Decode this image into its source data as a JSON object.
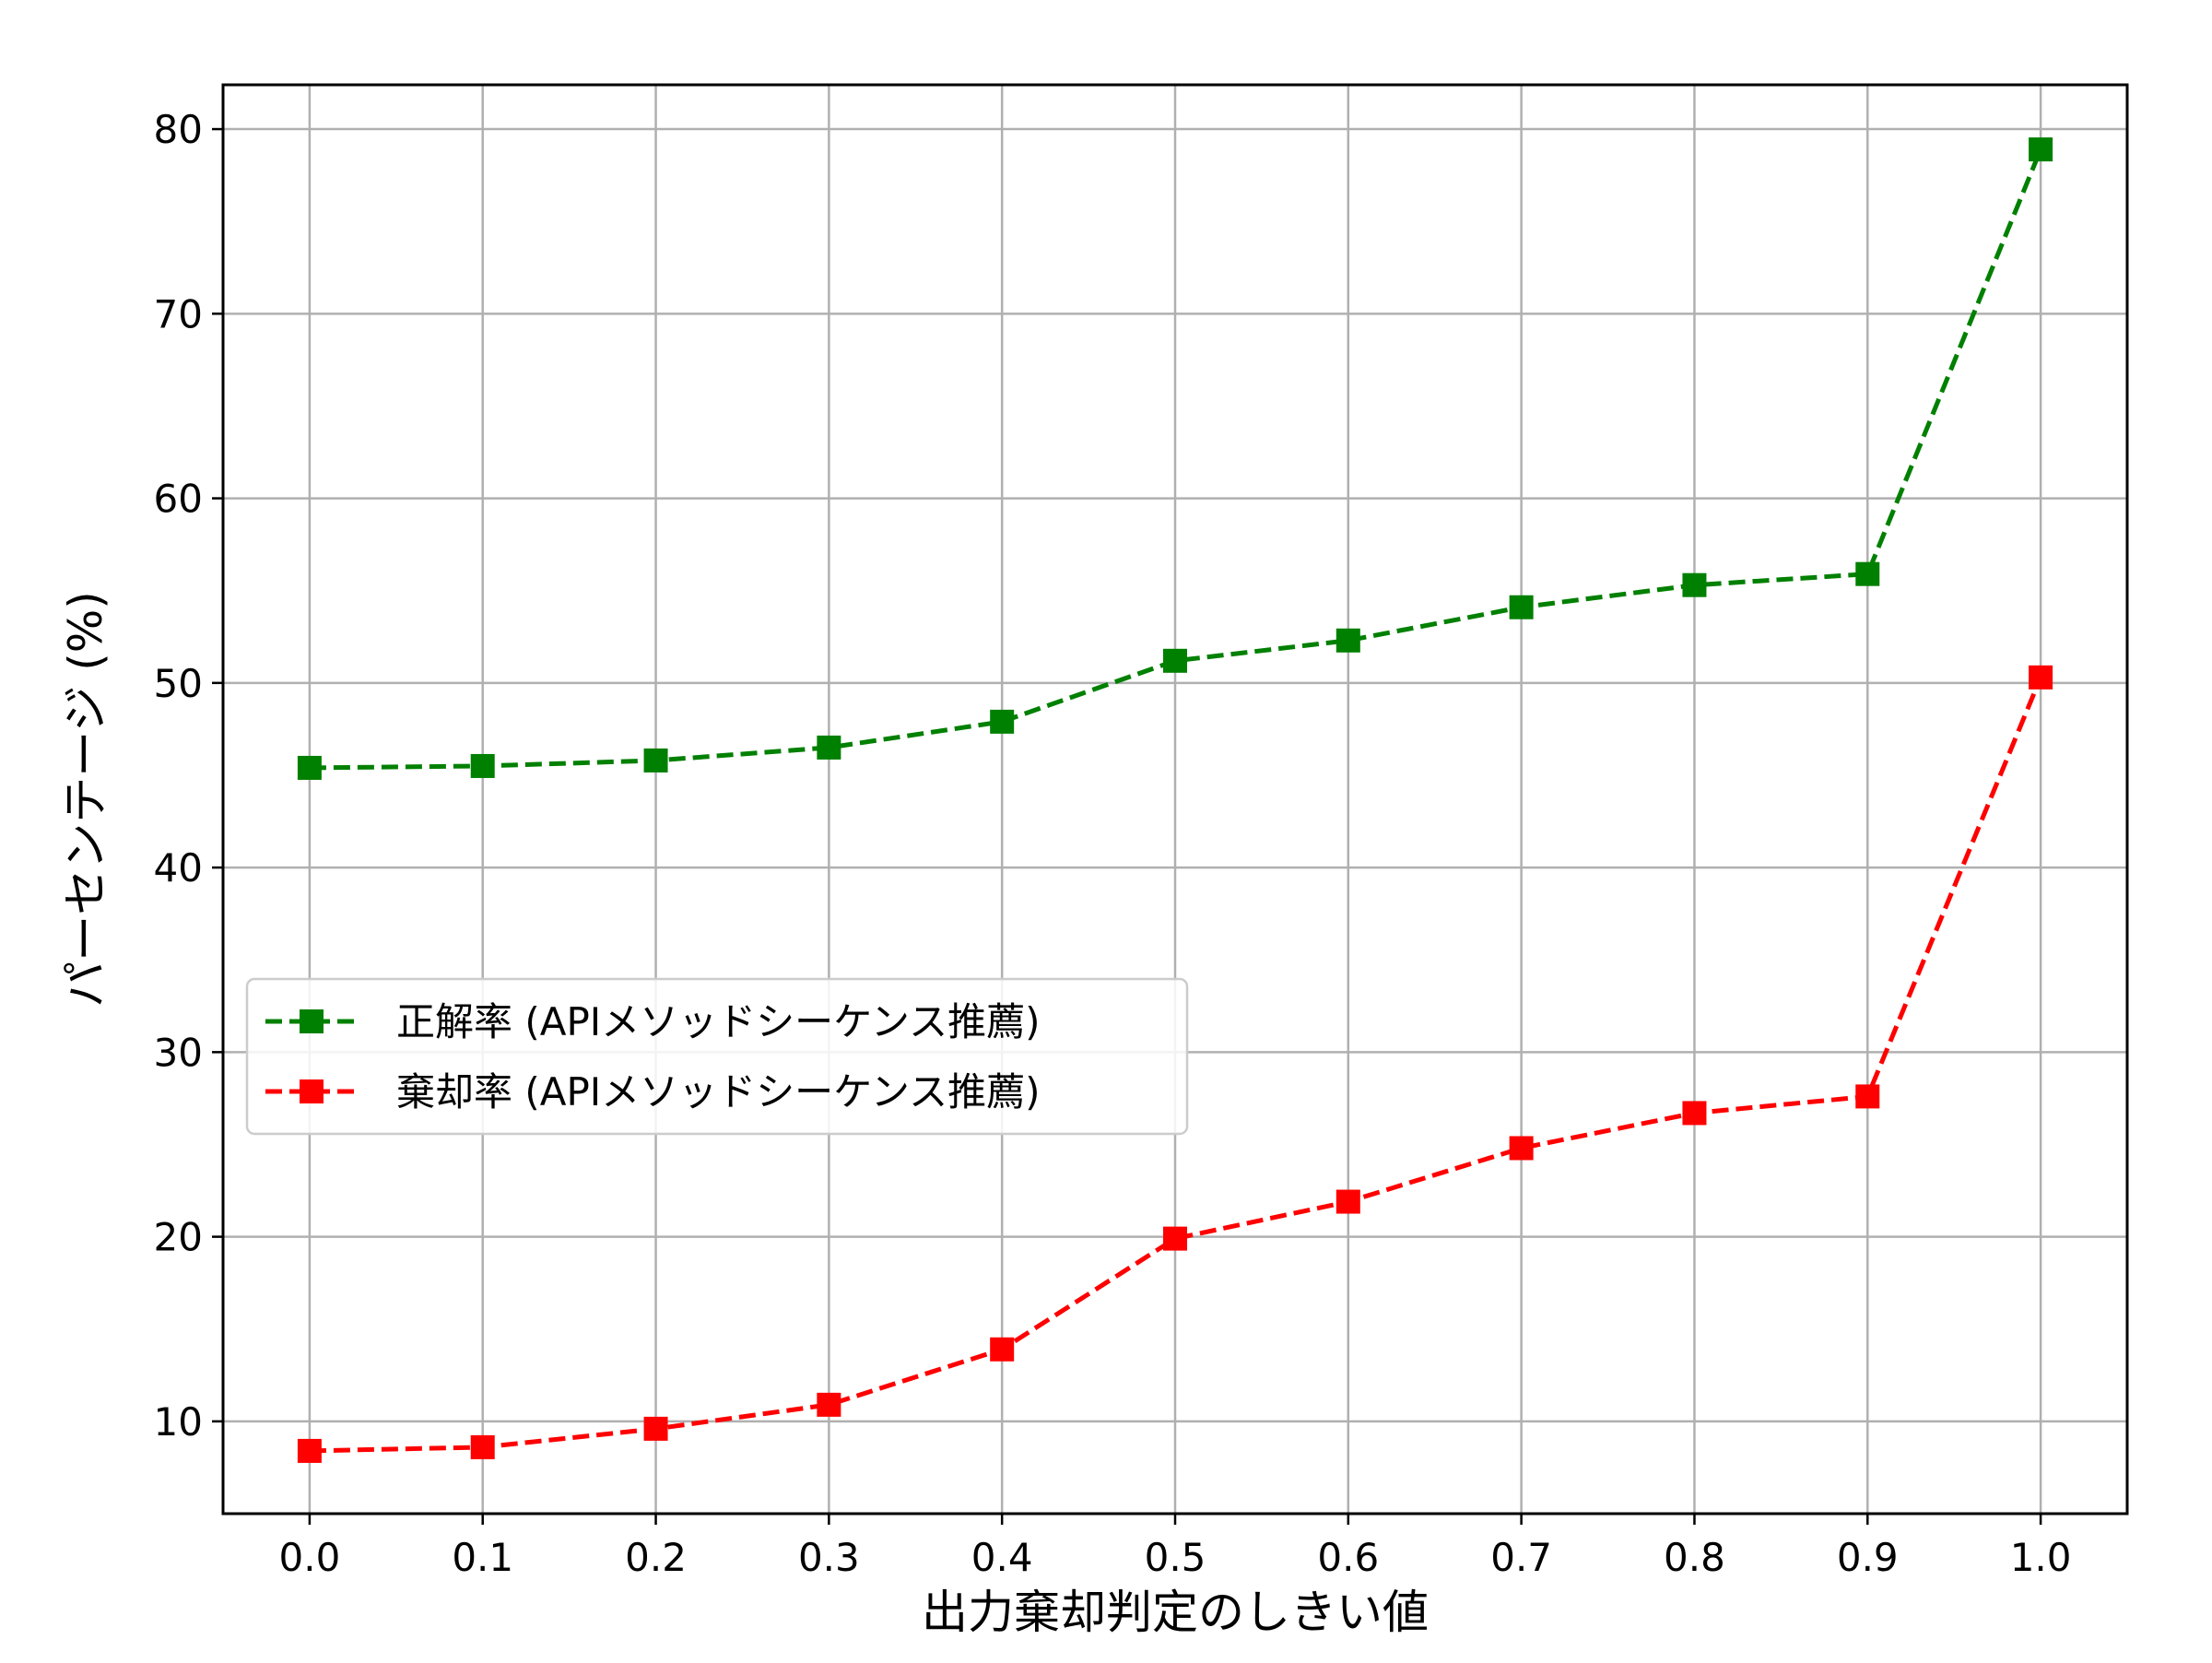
{
  "chart_data": {
    "type": "line",
    "title": "",
    "xlabel": "出力棄却判定のしきい値",
    "ylabel": "パーセンテージ (%)",
    "x": [
      0.0,
      0.1,
      0.2,
      0.3,
      0.4,
      0.5,
      0.6,
      0.7,
      0.8,
      0.9,
      1.0
    ],
    "xtick_labels": [
      "0.0",
      "0.1",
      "0.2",
      "0.3",
      "0.4",
      "0.5",
      "0.6",
      "0.7",
      "0.8",
      "0.9",
      "1.0"
    ],
    "yticks": [
      10,
      20,
      30,
      40,
      50,
      60,
      70,
      80
    ],
    "ytick_labels": [
      "10",
      "20",
      "30",
      "40",
      "50",
      "60",
      "70",
      "80"
    ],
    "xlim": [
      -0.05,
      1.05
    ],
    "ylim": [
      5.0,
      82.4
    ],
    "grid": true,
    "legend_position": "center-left",
    "series": [
      {
        "name": "正解率 (APIメソッドシーケンス推薦)",
        "color": "#008000",
        "marker": "square",
        "line_style": "dashed",
        "values": [
          45.4,
          45.5,
          45.8,
          46.5,
          47.9,
          51.2,
          52.3,
          54.1,
          55.3,
          55.9,
          78.9
        ]
      },
      {
        "name": "棄却率 (APIメソッドシーケンス推薦)",
        "color": "#ff0000",
        "marker": "square",
        "line_style": "dashed",
        "values": [
          8.4,
          8.6,
          9.6,
          10.9,
          13.9,
          19.9,
          21.9,
          24.8,
          26.7,
          27.6,
          50.3
        ]
      }
    ]
  }
}
